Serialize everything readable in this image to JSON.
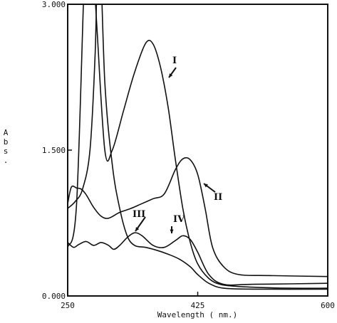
{
  "chart_data": {
    "type": "line",
    "xlabel": "Wavelength ( nm.)",
    "ylabel": "Abs.",
    "xlim": [
      250,
      600
    ],
    "ylim": [
      0,
      3
    ],
    "x_ticks": [
      {
        "value": 250,
        "label": "250"
      },
      {
        "value": 425,
        "label": "425"
      },
      {
        "value": 600,
        "label": "600"
      }
    ],
    "y_ticks": [
      {
        "value": 0,
        "label": "0.000"
      },
      {
        "value": 1.5,
        "label": "1.500"
      },
      {
        "value": 3,
        "label": "3.000"
      }
    ],
    "grid": false,
    "series": [
      {
        "name": "I",
        "x": [
          250,
          262,
          274,
          281,
          289,
          300,
          310,
          325,
          340,
          355,
          365,
          375,
          385,
          395,
          405,
          415,
          425,
          440,
          455,
          475,
          500,
          550,
          600
        ],
        "y": [
          0.5,
          0.95,
          3.6,
          3.8,
          2.8,
          1.5,
          1.5,
          1.9,
          2.3,
          2.6,
          2.59,
          2.35,
          1.95,
          1.4,
          0.9,
          0.55,
          0.33,
          0.18,
          0.12,
          0.1,
          0.09,
          0.08,
          0.08
        ]
      },
      {
        "name": "II",
        "x": [
          250,
          255,
          262,
          268,
          275,
          285,
          295,
          305,
          320,
          335,
          350,
          365,
          380,
          395,
          405,
          415,
          425,
          435,
          445,
          460,
          480,
          520,
          600
        ],
        "y": [
          0.95,
          1.12,
          1.11,
          1.1,
          1.04,
          0.91,
          0.82,
          0.8,
          0.86,
          0.9,
          0.95,
          1.0,
          1.05,
          1.3,
          1.41,
          1.4,
          1.25,
          0.9,
          0.5,
          0.3,
          0.22,
          0.21,
          0.2
        ]
      },
      {
        "name": "III",
        "x": [
          250,
          260,
          270,
          280,
          287,
          292,
          300,
          310,
          320,
          330,
          340,
          355,
          370,
          385,
          400,
          415,
          425,
          440,
          460,
          500,
          600
        ],
        "y": [
          0.9,
          0.97,
          1.1,
          1.5,
          2.5,
          3.8,
          2.2,
          1.35,
          0.9,
          0.62,
          0.52,
          0.5,
          0.47,
          0.43,
          0.38,
          0.3,
          0.22,
          0.13,
          0.08,
          0.07,
          0.07
        ]
      },
      {
        "name": "IV",
        "x": [
          250,
          258,
          265,
          275,
          285,
          295,
          305,
          312,
          320,
          330,
          340,
          350,
          365,
          380,
          395,
          405,
          415,
          425,
          440,
          460,
          500,
          600
        ],
        "y": [
          0.55,
          0.5,
          0.53,
          0.56,
          0.52,
          0.55,
          0.52,
          0.48,
          0.52,
          0.6,
          0.65,
          0.62,
          0.52,
          0.5,
          0.57,
          0.62,
          0.58,
          0.45,
          0.22,
          0.12,
          0.12,
          0.13
        ]
      }
    ],
    "annotations": [
      {
        "text": "I",
        "series": "I"
      },
      {
        "text": "II",
        "series": "II"
      },
      {
        "text": "III",
        "series": "III"
      },
      {
        "text": "IV",
        "series": "IV"
      }
    ]
  }
}
